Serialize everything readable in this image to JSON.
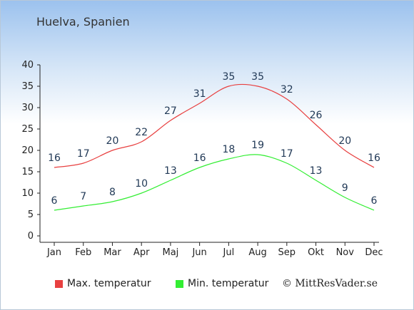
{
  "page": {
    "title": "Huelva, Spanien",
    "credit": "© MittResVader.se"
  },
  "colors": {
    "max": "#e84040",
    "min": "#33ee33",
    "axis": "#222222",
    "label": "#223a57"
  },
  "chart_data": {
    "type": "line",
    "title": "Huelva, Spanien",
    "xlabel": "",
    "ylabel": "",
    "categories": [
      "Jan",
      "Feb",
      "Mar",
      "Apr",
      "Maj",
      "Jun",
      "Jul",
      "Aug",
      "Sep",
      "Okt",
      "Nov",
      "Dec"
    ],
    "ylim": [
      0,
      40
    ],
    "yticks": [
      0,
      5,
      10,
      15,
      20,
      25,
      30,
      35,
      40
    ],
    "grid": false,
    "legend_position": "bottom",
    "series": [
      {
        "name": "Max. temperatur",
        "values": [
          16,
          17,
          20,
          22,
          27,
          31,
          35,
          35,
          32,
          26,
          20,
          16
        ]
      },
      {
        "name": "Min. temperatur",
        "values": [
          6,
          7,
          8,
          10,
          13,
          16,
          18,
          19,
          17,
          13,
          9,
          6
        ]
      }
    ]
  }
}
